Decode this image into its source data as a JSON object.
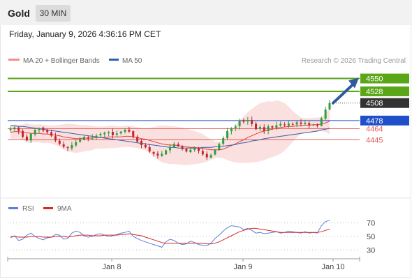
{
  "header": {
    "title": "Gold",
    "timeframe": "30 MIN"
  },
  "datetime": "Friday, January 9, 2026 4:36:16 PM CET",
  "legend": {
    "ma20_bb": "MA 20 + Bollinger Bands",
    "ma50": "MA 50"
  },
  "copyright": "Research © 2026 Trading Central",
  "colors": {
    "up": "#2e9e3f",
    "down": "#c0282f",
    "ma20": "#e8393a",
    "ma50": "#2f5fb0",
    "band_fill": "#fadada",
    "target_green": "#5aa618",
    "pivot_blue": "#1f4fc9",
    "support_red": "#e35a5a",
    "current_dark": "#333333",
    "arrow": "#2f5a9e",
    "rsi": "#5a7fd8",
    "rsi_ma": "#d42a2a"
  },
  "chart_data": [
    {
      "type": "line",
      "subtype": "candlestick",
      "y_range": [
        4350,
        4565
      ],
      "x_ticks": [
        "Jan 8",
        "Jan 9",
        "Jan 10"
      ],
      "levels": [
        {
          "label": "4550",
          "value": 4550,
          "kind": "target"
        },
        {
          "label": "4528",
          "value": 4528,
          "kind": "target"
        },
        {
          "label": "4508",
          "value": 4508,
          "kind": "current"
        },
        {
          "label": "4478",
          "value": 4478,
          "kind": "pivot"
        },
        {
          "label": "4464",
          "value": 4464,
          "kind": "support"
        },
        {
          "label": "4445",
          "value": 4445,
          "kind": "support"
        }
      ],
      "closes": [
        4464,
        4466,
        4460,
        4450,
        4444,
        4455,
        4462,
        4465,
        4461,
        4458,
        4452,
        4444,
        4438,
        4433,
        4431,
        4436,
        4441,
        4446,
        4450,
        4447,
        4449,
        4452,
        4455,
        4457,
        4458,
        4453,
        4456,
        4459,
        4462,
        4459,
        4450,
        4442,
        4436,
        4432,
        4425,
        4421,
        4418,
        4421,
        4427,
        4433,
        4438,
        4434,
        4429,
        4425,
        4428,
        4432,
        4426,
        4420,
        4415,
        4419,
        4428,
        4438,
        4448,
        4460,
        4465,
        4468,
        4478,
        4476,
        4479,
        4472,
        4463,
        4467,
        4460,
        4468,
        4466,
        4470,
        4472,
        4470,
        4473,
        4471,
        4475,
        4472,
        4474,
        4470,
        4471,
        4469,
        4482,
        4497,
        4508
      ],
      "series": [
        {
          "name": "MA 20 + Bollinger Bands",
          "values": [
            4458,
            4459,
            4459,
            4458,
            4457,
            4456,
            4456,
            4456,
            4455,
            4455,
            4454,
            4453,
            4452,
            4450,
            4449,
            4448,
            4447,
            4447,
            4448,
            4448,
            4448,
            4449,
            4449,
            4449,
            4450,
            4450,
            4450,
            4450,
            4451,
            4451,
            4450,
            4449,
            4447,
            4446,
            4444,
            4442,
            4440,
            4438,
            4437,
            4436,
            4436,
            4435,
            4434,
            4433,
            4432,
            4432,
            4431,
            4430,
            4429,
            4428,
            4428,
            4428,
            4429,
            4432,
            4435,
            4438,
            4442,
            4445,
            4449,
            4452,
            4455,
            4458,
            4460,
            4462,
            4463,
            4465,
            4466,
            4467,
            4468,
            4468,
            4469,
            4469,
            4470,
            4470,
            4471,
            4471,
            4472,
            4474,
            4477
          ]
        },
        {
          "name": "MA 50",
          "values": [
            4470,
            4469,
            4468,
            4468,
            4467,
            4466,
            4465,
            4464,
            4463,
            4462,
            4461,
            4460,
            4459,
            4458,
            4457,
            4456,
            4455,
            4454,
            4453,
            4452,
            4451,
            4450,
            4449,
            4448,
            4447,
            4446,
            4445,
            4444,
            4443,
            4442,
            4441,
            4440,
            4439,
            4438,
            4437,
            4436,
            4435,
            4434,
            4433,
            4432,
            4432,
            4431,
            4431,
            4431,
            4431,
            4431,
            4431,
            4432,
            4432,
            4432,
            4433,
            4433,
            4434,
            4435,
            4436,
            4437,
            4439,
            4440,
            4441,
            4443,
            4444,
            4445,
            4447,
            4448,
            4449,
            4450,
            4451,
            4452,
            4453,
            4454,
            4455,
            4456,
            4457,
            4458,
            4459,
            4460,
            4462,
            4463,
            4465
          ]
        }
      ]
    },
    {
      "type": "line",
      "y_range": [
        20,
        80
      ],
      "y_ticks": [
        70,
        50,
        30
      ],
      "series": [
        {
          "name": "RSI",
          "values": [
            48,
            51,
            44,
            46,
            52,
            55,
            50,
            47,
            45,
            48,
            49,
            53,
            52,
            46,
            47,
            55,
            58,
            56,
            51,
            49,
            50,
            53,
            54,
            52,
            50,
            51,
            53,
            55,
            56,
            58,
            50,
            47,
            44,
            42,
            40,
            38,
            36,
            34,
            42,
            46,
            44,
            40,
            38,
            39,
            43,
            41,
            38,
            37,
            36,
            40,
            47,
            52,
            58,
            63,
            66,
            65,
            64,
            60,
            62,
            59,
            55,
            56,
            54,
            55,
            56,
            57,
            55,
            56,
            58,
            57,
            56,
            55,
            57,
            55,
            56,
            55,
            66,
            72,
            74
          ]
        },
        {
          "name": "9MA",
          "values": [
            50,
            50,
            49,
            49,
            49,
            50,
            50,
            50,
            49,
            49,
            49,
            50,
            50,
            50,
            49,
            50,
            51,
            52,
            52,
            52,
            51,
            51,
            51,
            52,
            52,
            52,
            52,
            53,
            53,
            54,
            53,
            52,
            51,
            49,
            47,
            45,
            43,
            41,
            40,
            40,
            40,
            40,
            40,
            40,
            40,
            40,
            40,
            40,
            39,
            39,
            40,
            42,
            45,
            48,
            51,
            54,
            57,
            59,
            61,
            62,
            62,
            61,
            60,
            59,
            58,
            57,
            56,
            56,
            56,
            56,
            56,
            56,
            56,
            56,
            56,
            56,
            57,
            59,
            61
          ]
        }
      ]
    }
  ]
}
